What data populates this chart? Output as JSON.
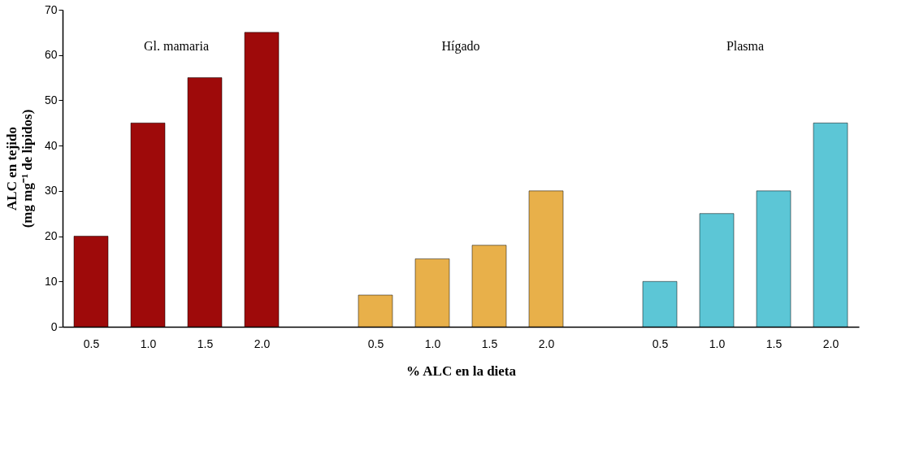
{
  "chart_data": {
    "type": "bar",
    "xlabel": "% ALC en la dieta",
    "ylabel": "ALC en tejido\n(mg mg⁻¹ de lipidos)",
    "categories": [
      "0.5",
      "1.0",
      "1.5",
      "2.0",
      null,
      "0.5",
      "1.0",
      "1.5",
      "2.0",
      null,
      "0.5",
      "1.0",
      "1.5",
      "2.0"
    ],
    "series": [
      {
        "color": "#9e0a0a",
        "values": [
          20,
          45,
          55,
          65,
          null,
          null,
          null,
          null,
          null,
          null,
          null,
          null,
          null,
          null
        ]
      },
      {
        "color": "#e8b04a",
        "values": [
          null,
          null,
          null,
          null,
          null,
          7,
          15,
          18,
          30,
          null,
          null,
          null,
          null,
          null
        ]
      },
      {
        "color": "#5cc6d6",
        "values": [
          null,
          null,
          null,
          null,
          null,
          null,
          null,
          null,
          null,
          null,
          10,
          25,
          30,
          45
        ]
      }
    ],
    "annotations": [
      "Gl. mamaria",
      "Hígado",
      "Plasma"
    ],
    "ylim": [
      0,
      70
    ],
    "yticks": [
      0,
      10,
      20,
      30,
      40,
      50,
      60,
      70
    ],
    "grid": false,
    "legend": false
  }
}
